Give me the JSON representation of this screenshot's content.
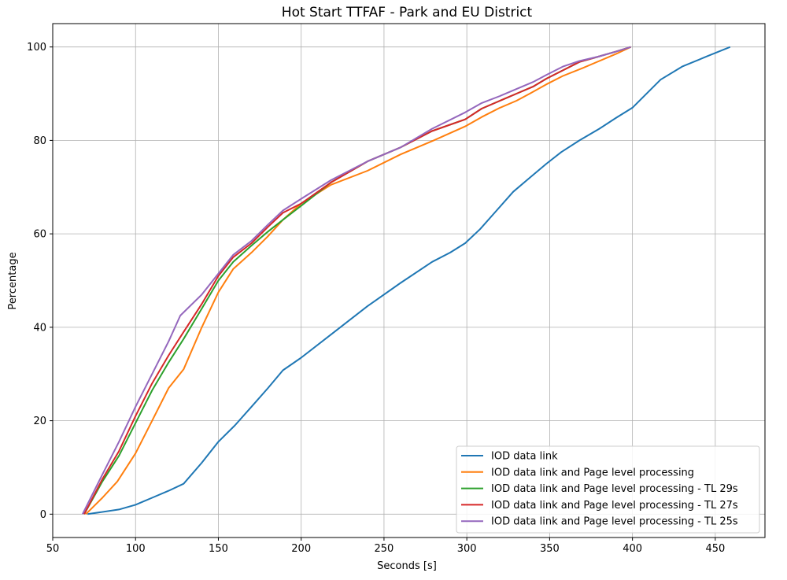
{
  "chart_data": {
    "type": "line",
    "title": "Hot Start TTFAF - Park and EU District",
    "xlabel": "Seconds [s]",
    "ylabel": "Percentage",
    "xlim": [
      50,
      480
    ],
    "ylim": [
      -5,
      105
    ],
    "xticks": [
      50,
      100,
      150,
      200,
      250,
      300,
      350,
      400,
      450
    ],
    "yticks": [
      0,
      20,
      40,
      60,
      80,
      100
    ],
    "grid": true,
    "legend_position": "lower-right",
    "series": [
      {
        "name": "IOD data link",
        "color": "#1f77b4",
        "x": [
          71,
          90,
          100,
          110,
          120,
          129,
          140,
          150,
          160,
          170,
          180,
          189,
          200,
          220,
          240,
          260,
          279,
          290,
          299,
          308,
          318,
          328,
          338,
          348,
          357,
          368,
          380,
          390,
          400,
          417,
          430,
          445,
          459
        ],
        "y": [
          0,
          1,
          2,
          3.5,
          5,
          6.5,
          11,
          15.5,
          19,
          23,
          27,
          30.8,
          33.5,
          39,
          44.5,
          49.5,
          54,
          56,
          58,
          61,
          65,
          69,
          72,
          75,
          77.5,
          80,
          82.5,
          84.8,
          87,
          93,
          95.8,
          98,
          100
        ]
      },
      {
        "name": "IOD data link and Page level processing",
        "color": "#ff7f0e",
        "x": [
          70,
          80,
          89,
          100,
          110,
          120,
          129,
          140,
          150,
          159,
          170,
          180,
          189,
          200,
          218,
          240,
          260,
          280,
          299,
          309,
          320,
          330,
          338,
          348,
          358,
          370,
          380,
          390,
          399
        ],
        "y": [
          0,
          3.5,
          7,
          13,
          20,
          27,
          31,
          40,
          47.5,
          52.5,
          56,
          59.5,
          63,
          66.5,
          70.5,
          73.5,
          77,
          80,
          83,
          85,
          87,
          88.5,
          90,
          92,
          93.8,
          95.5,
          97,
          98.5,
          100
        ]
      },
      {
        "name": "IOD data link and Page level processing - TL 29s",
        "color": "#2ca02c",
        "x": [
          69,
          80,
          90,
          100,
          110,
          120,
          129,
          140,
          150,
          159,
          170,
          180,
          189,
          200,
          218,
          240,
          260,
          279,
          299,
          309,
          320,
          330,
          340,
          348,
          358,
          368,
          380,
          390,
          399
        ],
        "y": [
          0,
          7,
          12.5,
          19.5,
          26.5,
          32.5,
          37.5,
          44,
          50,
          54,
          57.5,
          60.5,
          63,
          66,
          71,
          75.5,
          78.5,
          82,
          84.5,
          86.8,
          88.5,
          90,
          91.5,
          93.2,
          95,
          96.8,
          98,
          99,
          100
        ]
      },
      {
        "name": "IOD data link and Page level processing - TL 27s",
        "color": "#d62728",
        "x": [
          69,
          80,
          90,
          100,
          110,
          120,
          129,
          140,
          150,
          159,
          170,
          180,
          189,
          200,
          218,
          240,
          260,
          279,
          299,
          309,
          320,
          330,
          340,
          348,
          358,
          368,
          380,
          390,
          399
        ],
        "y": [
          0,
          7.5,
          13.5,
          21,
          28,
          34,
          39,
          45,
          51,
          55,
          58,
          61.5,
          64.5,
          66.5,
          71,
          75.5,
          78.5,
          82,
          84.5,
          86.8,
          88.5,
          90,
          91.5,
          93.2,
          95,
          96.8,
          98,
          99,
          100
        ]
      },
      {
        "name": "IOD data link and Page level processing - TL 25s",
        "color": "#9467bd",
        "x": [
          68,
          80,
          90,
          100,
          110,
          120,
          127,
          140,
          150,
          159,
          170,
          180,
          189,
          200,
          218,
          240,
          260,
          279,
          299,
          309,
          320,
          330,
          340,
          348,
          358,
          368,
          380,
          390,
          399
        ],
        "y": [
          0,
          8.5,
          15.5,
          23,
          30,
          37,
          42.5,
          47,
          51.5,
          55.5,
          58.5,
          62,
          65,
          67.5,
          71.5,
          75.5,
          78.5,
          82.5,
          86,
          88,
          89.5,
          91,
          92.5,
          94,
          95.8,
          97,
          98,
          99,
          100
        ]
      }
    ]
  }
}
